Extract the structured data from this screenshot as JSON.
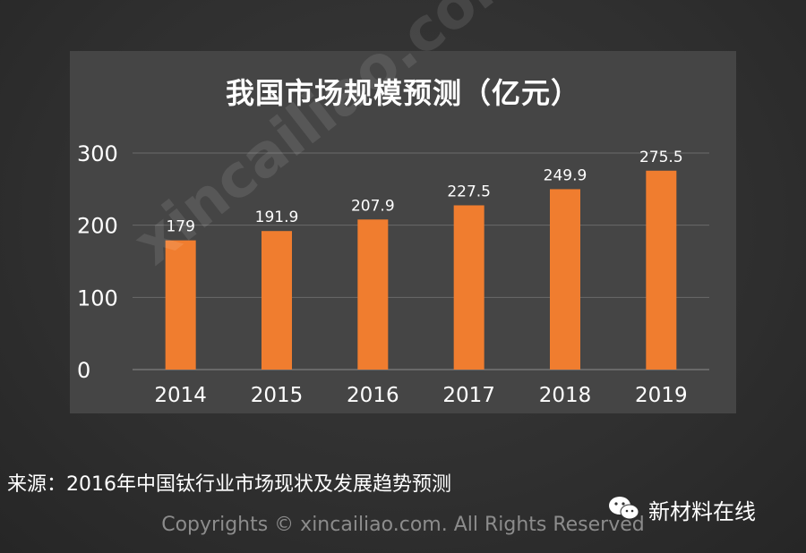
{
  "chart_data": {
    "type": "bar",
    "title": "我国市场规模预测（亿元）",
    "categories": [
      "2014",
      "2015",
      "2016",
      "2017",
      "2018",
      "2019"
    ],
    "values": [
      179,
      191.9,
      207.9,
      227.5,
      249.9,
      275.5
    ],
    "data_labels": [
      "179",
      "191.9",
      "207.9",
      "227.5",
      "249.9",
      "275.5"
    ],
    "y_ticks": [
      "0",
      "100",
      "200",
      "300"
    ],
    "ylim": [
      0,
      300
    ],
    "xlabel": "",
    "ylabel": "",
    "grid": true,
    "bar_color": "#f07d2f",
    "gridline_color": "#6a6a6a",
    "panel_color": "#454545"
  },
  "footer": {
    "source": "来源：2016年中国钛行业市场现状及发展趋势预测",
    "wechat_label": "新材料在线",
    "copyright": "Copyrights © xincailiao.com. All Rights Reserved"
  },
  "watermark": "xincailiao.com",
  "icons": {
    "wechat": "wechat-icon"
  }
}
